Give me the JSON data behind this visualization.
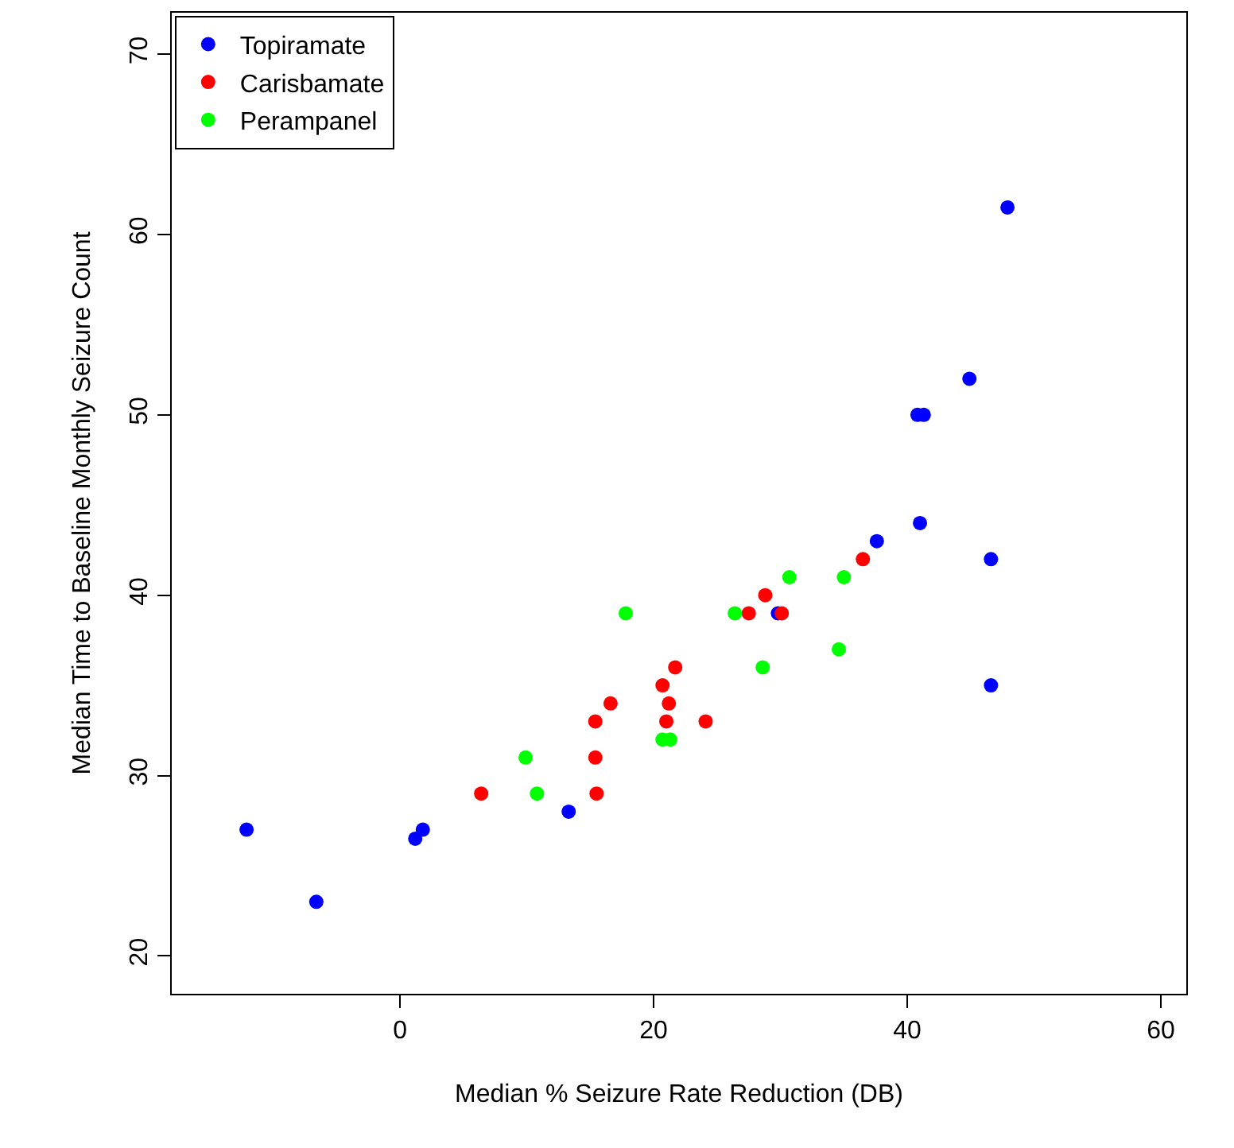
{
  "chart_data": {
    "type": "scatter",
    "xlabel": "Median % Seizure Rate Reduction (DB)",
    "ylabel": "Median Time to Baseline Monthly Seizure Count",
    "xlim": [
      -18,
      62
    ],
    "ylim": [
      17.9,
      72.3
    ],
    "xticks": [
      0,
      20,
      40,
      60
    ],
    "yticks": [
      20,
      30,
      40,
      50,
      60,
      70
    ],
    "legend": "top left",
    "marker": "circle",
    "series": [
      {
        "name": "Topiramate",
        "color": "#0000ff",
        "x": [
          -12.1,
          -6.6,
          1.2,
          1.8,
          13.3,
          29.8,
          37.6,
          47.9,
          44.9,
          40.8,
          41.3,
          41.0,
          46.6,
          46.6
        ],
        "values": [
          27,
          23,
          26.5,
          27,
          28,
          39,
          43,
          61.5,
          52,
          50,
          50,
          44,
          42,
          35
        ]
      },
      {
        "name": "Carisbamate",
        "color": "#ff0000",
        "x": [
          6.4,
          15.4,
          15.5,
          15.4,
          16.6,
          21.7,
          20.7,
          21.2,
          21.0,
          24.1,
          27.5,
          28.8,
          30.1,
          36.5
        ],
        "values": [
          29,
          31,
          29,
          33,
          34,
          36,
          35,
          34,
          33,
          33,
          39,
          40,
          39,
          42
        ]
      },
      {
        "name": "Perampanel",
        "color": "#00ff00",
        "x": [
          9.9,
          10.8,
          17.8,
          26.4,
          30.7,
          35.0,
          34.6,
          28.6,
          20.7,
          21.3
        ],
        "values": [
          31,
          29,
          39,
          39,
          41,
          41,
          37,
          36,
          32,
          32
        ]
      }
    ]
  }
}
